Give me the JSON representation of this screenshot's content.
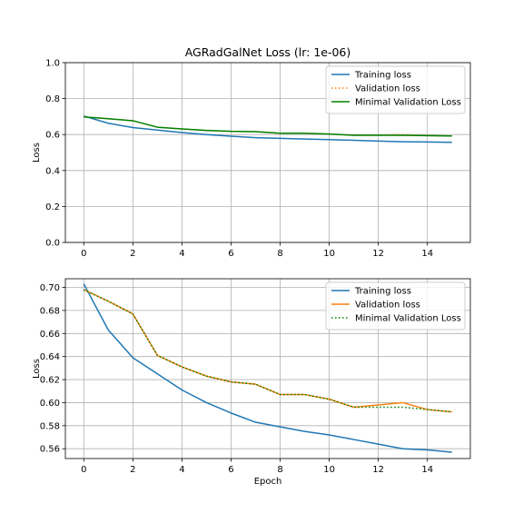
{
  "chart_data": [
    {
      "type": "line",
      "title": "AGRadGalNet Loss (lr: 1e-06)",
      "xlabel": "",
      "ylabel": "Loss",
      "xlim": [
        -0.75,
        15.75
      ],
      "ylim": [
        0,
        1.0
      ],
      "xticks": [
        0,
        2,
        4,
        6,
        8,
        10,
        12,
        14
      ],
      "xtick_labels": [
        "0",
        "2",
        "4",
        "6",
        "8",
        "10",
        "12",
        "14"
      ],
      "yticks": [
        0,
        0.2,
        0.4,
        0.6,
        0.8,
        1.0
      ],
      "ytick_labels": [
        "0.0",
        "0.2",
        "0.4",
        "0.6",
        "0.8",
        "1.0"
      ],
      "grid": true,
      "legend_position": "top-right",
      "x": [
        0,
        1,
        2,
        3,
        4,
        5,
        6,
        7,
        8,
        9,
        10,
        11,
        12,
        13,
        14,
        15
      ],
      "series": [
        {
          "name": "Training loss",
          "color": "#1f77b4",
          "style": "solid",
          "values": [
            0.703,
            0.663,
            0.639,
            0.625,
            0.611,
            0.6,
            0.591,
            0.583,
            0.579,
            0.575,
            0.572,
            0.568,
            0.564,
            0.56,
            0.559,
            0.557
          ]
        },
        {
          "name": "Validation loss",
          "color": "#ff7f0e",
          "style": "dotted",
          "values": [
            0.698,
            0.688,
            0.677,
            0.641,
            0.631,
            0.623,
            0.618,
            0.616,
            0.607,
            0.607,
            0.603,
            0.596,
            0.598,
            0.6,
            0.594,
            0.592
          ]
        },
        {
          "name": "Minimal Validation Loss",
          "color": "#008000",
          "style": "solid",
          "values": [
            0.698,
            0.688,
            0.677,
            0.641,
            0.631,
            0.623,
            0.618,
            0.616,
            0.607,
            0.607,
            0.603,
            0.596,
            0.596,
            0.596,
            0.594,
            0.592
          ]
        }
      ]
    },
    {
      "type": "line",
      "title": "",
      "xlabel": "Epoch",
      "ylabel": "Loss",
      "xlim": [
        -0.75,
        15.75
      ],
      "ylim": [
        0.5515,
        0.7075
      ],
      "xticks": [
        0,
        2,
        4,
        6,
        8,
        10,
        12,
        14
      ],
      "xtick_labels": [
        "0",
        "2",
        "4",
        "6",
        "8",
        "10",
        "12",
        "14"
      ],
      "yticks": [
        0.56,
        0.58,
        0.6,
        0.62,
        0.64,
        0.66,
        0.68,
        0.7
      ],
      "ytick_labels": [
        "0.56",
        "0.58",
        "0.60",
        "0.62",
        "0.64",
        "0.66",
        "0.68",
        "0.70"
      ],
      "grid": true,
      "legend_position": "top-right",
      "x": [
        0,
        1,
        2,
        3,
        4,
        5,
        6,
        7,
        8,
        9,
        10,
        11,
        12,
        13,
        14,
        15
      ],
      "series": [
        {
          "name": "Training loss",
          "color": "#1f77b4",
          "style": "solid",
          "values": [
            0.703,
            0.663,
            0.639,
            0.625,
            0.611,
            0.6,
            0.591,
            0.583,
            0.579,
            0.575,
            0.572,
            0.568,
            0.564,
            0.56,
            0.559,
            0.557
          ]
        },
        {
          "name": "Validation loss",
          "color": "#ff7f0e",
          "style": "solid",
          "values": [
            0.698,
            0.688,
            0.677,
            0.641,
            0.631,
            0.623,
            0.618,
            0.616,
            0.607,
            0.607,
            0.603,
            0.596,
            0.598,
            0.6,
            0.594,
            0.592
          ]
        },
        {
          "name": "Minimal Validation Loss",
          "color": "#008000",
          "style": "dotted",
          "values": [
            0.698,
            0.688,
            0.677,
            0.641,
            0.631,
            0.623,
            0.618,
            0.616,
            0.607,
            0.607,
            0.603,
            0.596,
            0.596,
            0.596,
            0.594,
            0.592
          ]
        }
      ]
    }
  ]
}
